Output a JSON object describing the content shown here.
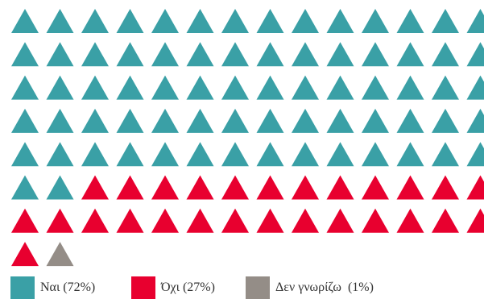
{
  "chart_data": {
    "type": "waffle",
    "total_units": 100,
    "unit_shape": "triangle",
    "columns": 14,
    "series": [
      {
        "name": "Ναι",
        "label": "Ναι (72%)",
        "value": 72,
        "color": "#3aa0a6"
      },
      {
        "name": "Όχι",
        "label": "Όχι (27%)",
        "value": 27,
        "color": "#e8002f"
      },
      {
        "name": "Δεν γνωρίζω",
        "label": "Δεν γνωρίζω  (1%)",
        "value": 1,
        "color": "#948d87"
      }
    ],
    "legend_position": "bottom"
  }
}
